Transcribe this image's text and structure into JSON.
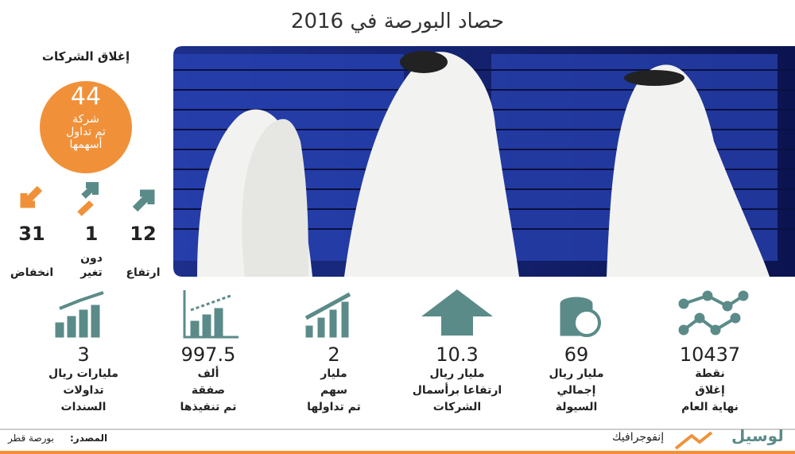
{
  "header": {
    "title": "حصاد البورصة في 2016"
  },
  "companies": {
    "heading": "إغلاق الشركات",
    "total": 44,
    "total_lines": [
      "شركة",
      "تم تداول",
      "أسهمها"
    ],
    "counts": [
      {
        "value": 31,
        "lines": [
          "انخفاض"
        ]
      },
      {
        "value": 1,
        "lines": [
          "دون",
          "تغير"
        ]
      },
      {
        "value": 12,
        "lines": [
          "ارتفاع"
        ]
      }
    ]
  },
  "stats": [
    {
      "value": 10437,
      "unit": "نقطة",
      "lines": [
        "إغلاق",
        "نهاية العام"
      ]
    },
    {
      "value": 69,
      "unit": "مليار ريال",
      "lines": [
        "إجمالي",
        "السيولة"
      ]
    },
    {
      "value": 10.3,
      "unit": "مليار ريال",
      "lines": [
        "ارتفاعا برأسمال",
        "الشركات"
      ]
    },
    {
      "value": 2,
      "unit": "مليار",
      "lines": [
        "سهم",
        "تم تداولها"
      ]
    },
    {
      "value": 997.5,
      "unit": "ألف",
      "lines": [
        "صفقة",
        "تم تنفيذها"
      ]
    },
    {
      "value": 3,
      "unit": "مليارات ريال",
      "lines": [
        "تداولات",
        "السندات"
      ]
    }
  ],
  "footer": {
    "source_label": "المصدر:",
    "source": "بورصة قطر",
    "section": "إنفوجرافيك",
    "logo": "لوسيل"
  }
}
